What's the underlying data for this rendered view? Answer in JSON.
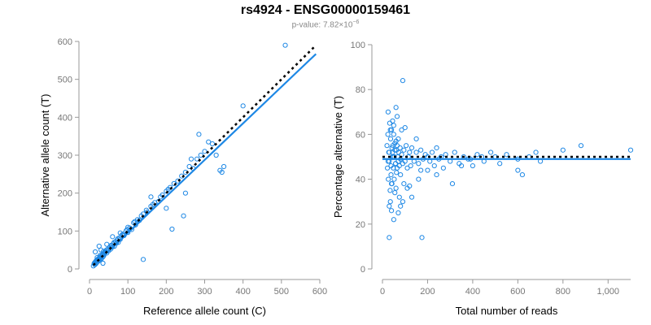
{
  "title": "rs4924 - ENSG00000159461",
  "subtitle": {
    "prefix": "p-value: 7.82×10",
    "exponent": "−6"
  },
  "colors": {
    "points": "#1e88e5",
    "fit_line": "#1e88e5",
    "reference_line": "#000000",
    "axis": "#999999",
    "subtitle": "#888888"
  },
  "chart_data": [
    {
      "type": "scatter",
      "title": "",
      "xlabel": "Reference allele count (C)",
      "ylabel": "Alternative allele count (T)",
      "xlim": [
        0,
        600
      ],
      "ylim": [
        0,
        600
      ],
      "xticks": [
        "0",
        "100",
        "200",
        "300",
        "400",
        "500",
        "600"
      ],
      "yticks": [
        "0",
        "100",
        "200",
        "300",
        "400",
        "500",
        "600"
      ],
      "grid": false,
      "fit_line": {
        "x": [
          10,
          590
        ],
        "y": [
          8,
          567
        ]
      },
      "reference_line": {
        "x": [
          10,
          590
        ],
        "y": [
          10,
          590
        ]
      },
      "points": {
        "x": [
          10,
          12,
          15,
          18,
          20,
          22,
          25,
          14,
          16,
          19,
          23,
          27,
          30,
          33,
          35,
          38,
          40,
          13,
          17,
          21,
          24,
          26,
          29,
          31,
          34,
          37,
          42,
          45,
          48,
          50,
          52,
          55,
          58,
          60,
          62,
          65,
          68,
          70,
          72,
          75,
          78,
          80,
          85,
          90,
          95,
          100,
          105,
          110,
          115,
          120,
          125,
          130,
          140,
          150,
          160,
          170,
          180,
          190,
          200,
          210,
          220,
          230,
          240,
          250,
          260,
          270,
          280,
          290,
          300,
          320,
          340,
          350,
          400,
          510,
          20,
          28,
          36,
          44,
          56,
          64,
          74,
          88,
          98,
          118,
          135,
          148,
          165,
          185,
          205,
          215,
          245,
          265,
          285,
          310,
          330,
          345,
          25,
          35,
          15,
          30,
          45,
          60,
          80,
          100,
          140,
          160,
          200,
          250
        ],
        "y": [
          8,
          14,
          18,
          16,
          22,
          20,
          27,
          11,
          20,
          24,
          21,
          30,
          28,
          36,
          32,
          40,
          44,
          16,
          14,
          25,
          28,
          24,
          33,
          27,
          38,
          35,
          46,
          42,
          52,
          48,
          56,
          52,
          62,
          58,
          66,
          60,
          72,
          68,
          76,
          70,
          82,
          78,
          90,
          88,
          100,
          96,
          108,
          104,
          122,
          116,
          130,
          128,
          145,
          150,
          165,
          175,
          178,
          195,
          205,
          215,
          225,
          232,
          245,
          255,
          270,
          265,
          290,
          300,
          310,
          330,
          260,
          270,
          430,
          590,
          30,
          36,
          46,
          50,
          62,
          70,
          80,
          92,
          104,
          125,
          140,
          155,
          170,
          190,
          210,
          105,
          140,
          290,
          355,
          335,
          300,
          255,
          60,
          15,
          45,
          50,
          65,
          85,
          95,
          110,
          25,
          190,
          160,
          200
        ]
      }
    },
    {
      "type": "scatter",
      "title": "",
      "xlabel": "Total number of reads",
      "ylabel": "Percentage alternative (T)",
      "xlim": [
        0,
        1100
      ],
      "ylim": [
        0,
        100
      ],
      "xticks": [
        "0",
        "200",
        "400",
        "600",
        "800",
        "1,000"
      ],
      "yticks": [
        "0",
        "20",
        "40",
        "60",
        "80",
        "100"
      ],
      "grid": false,
      "fit_line": {
        "x": [
          0,
          1100
        ],
        "y": [
          49,
          49
        ]
      },
      "reference_line": {
        "x": [
          0,
          1100
        ],
        "y": [
          50,
          50
        ]
      },
      "points": {
        "x": [
          20,
          22,
          24,
          26,
          28,
          30,
          32,
          34,
          36,
          38,
          40,
          42,
          44,
          46,
          48,
          50,
          52,
          55,
          58,
          60,
          62,
          65,
          68,
          70,
          72,
          75,
          78,
          80,
          85,
          90,
          95,
          100,
          105,
          110,
          115,
          120,
          125,
          130,
          140,
          150,
          160,
          170,
          180,
          190,
          200,
          210,
          220,
          230,
          240,
          250,
          260,
          280,
          300,
          320,
          340,
          360,
          380,
          400,
          420,
          450,
          480,
          500,
          520,
          550,
          600,
          620,
          650,
          680,
          700,
          800,
          880,
          1100,
          25,
          35,
          45,
          55,
          65,
          75,
          85,
          95,
          60,
          80,
          100,
          120,
          150,
          170,
          30,
          40,
          50,
          70,
          90,
          110,
          130,
          160,
          200,
          240,
          270,
          310,
          350,
          390,
          440,
          600,
          90,
          175,
          30,
          45,
          55,
          65,
          35,
          40,
          50,
          60,
          70,
          80,
          25,
          30,
          38,
          42,
          48,
          52,
          58,
          62
        ],
        "y": [
          55,
          45,
          60,
          40,
          52,
          48,
          65,
          35,
          58,
          42,
          62,
          38,
          50,
          55,
          45,
          60,
          40,
          53,
          47,
          57,
          43,
          55,
          50,
          48,
          52,
          46,
          54,
          49,
          51,
          47,
          53,
          48,
          55,
          45,
          50,
          52,
          46,
          54,
          48,
          52,
          47,
          53,
          49,
          51,
          50,
          48,
          52,
          46,
          54,
          49,
          50,
          51,
          48,
          52,
          47,
          50,
          49,
          46,
          51,
          48,
          52,
          50,
          47,
          51,
          49,
          42,
          50,
          52,
          48,
          53,
          55,
          53,
          70,
          30,
          66,
          34,
          68,
          32,
          62,
          38,
          72,
          28,
          63,
          37,
          58,
          44,
          28,
          26,
          22,
          25,
          30,
          36,
          32,
          40,
          44,
          42,
          45,
          38,
          46,
          49,
          50,
          44,
          84,
          14,
          14,
          52,
          56,
          45,
          62,
          38,
          64,
          36,
          58,
          42,
          48,
          52,
          46,
          54,
          50,
          50,
          47,
          53
        ]
      }
    }
  ]
}
